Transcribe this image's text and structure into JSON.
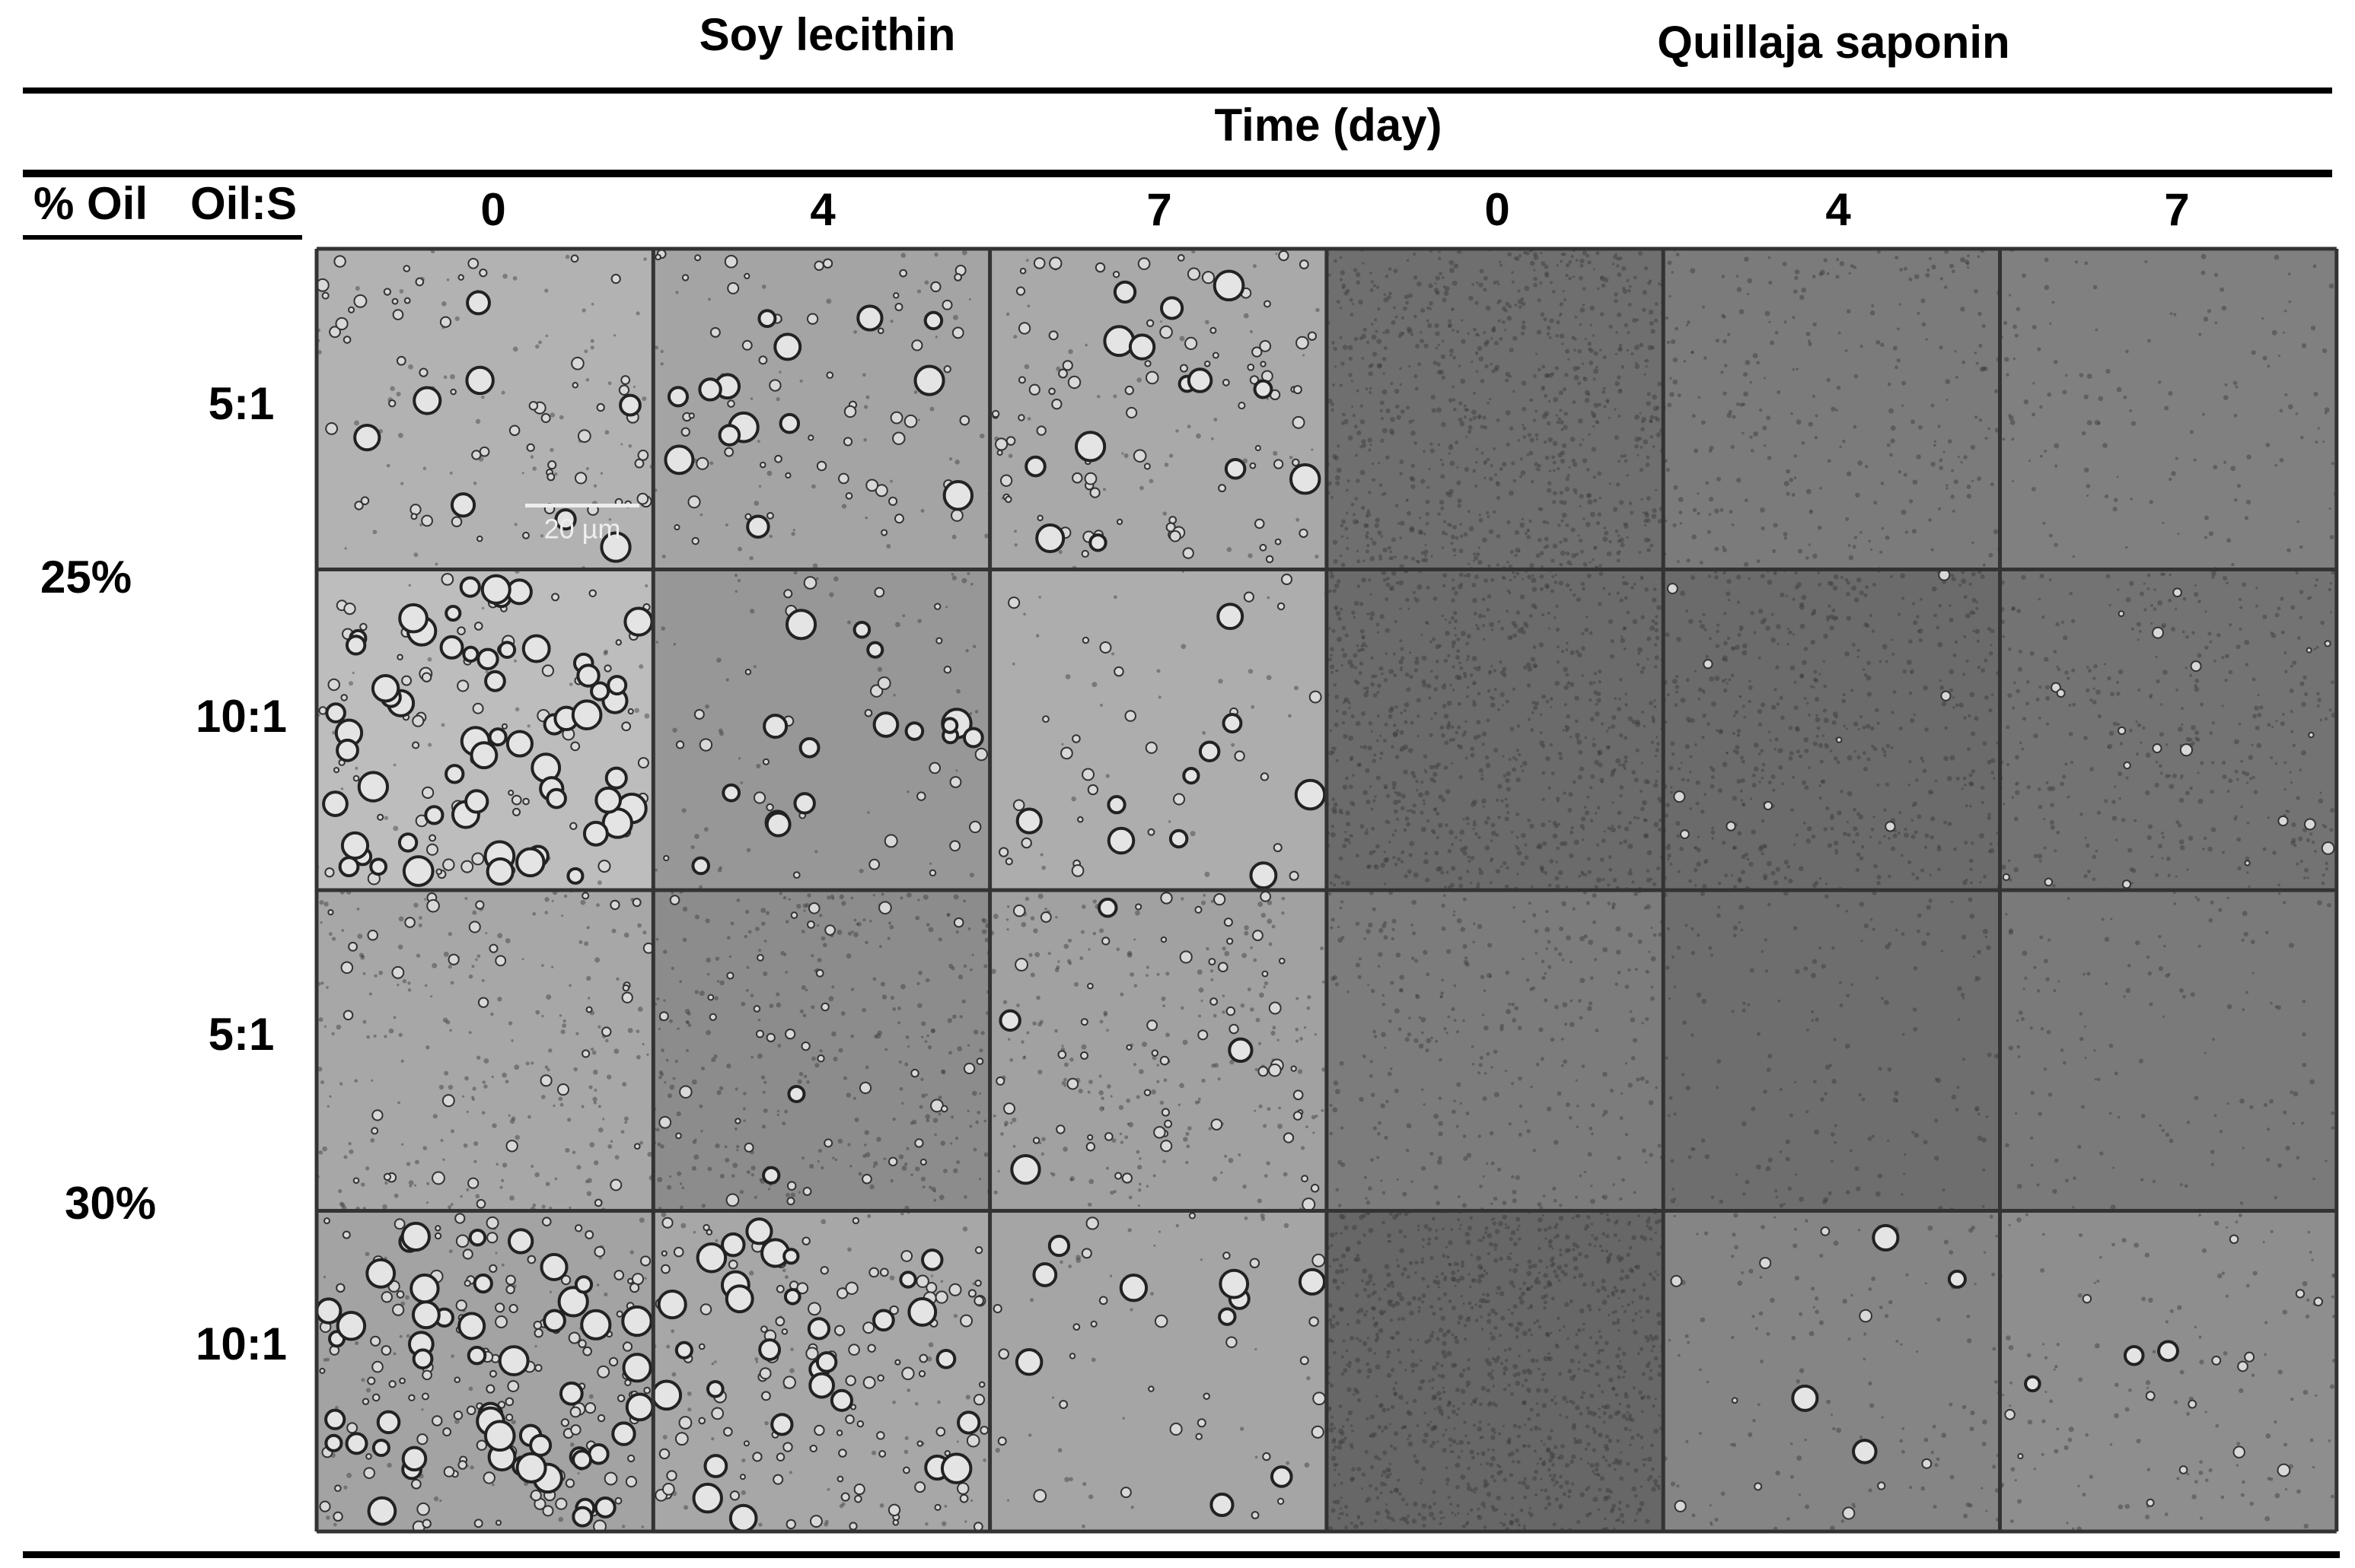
{
  "header": {
    "groups": [
      "Soy lecithin",
      "Quillaja saponin"
    ],
    "time_label": "Time (day)",
    "row_headers": [
      "% Oil",
      "Oil:S"
    ],
    "days": [
      0,
      4,
      7,
      0,
      4,
      7
    ]
  },
  "rows": [
    {
      "oil": "25%",
      "ratios": [
        "5:1",
        "10:1"
      ]
    },
    {
      "oil": "30%",
      "ratios": [
        "5:1",
        "10:1"
      ]
    }
  ],
  "scale_bar": "20 µm"
}
